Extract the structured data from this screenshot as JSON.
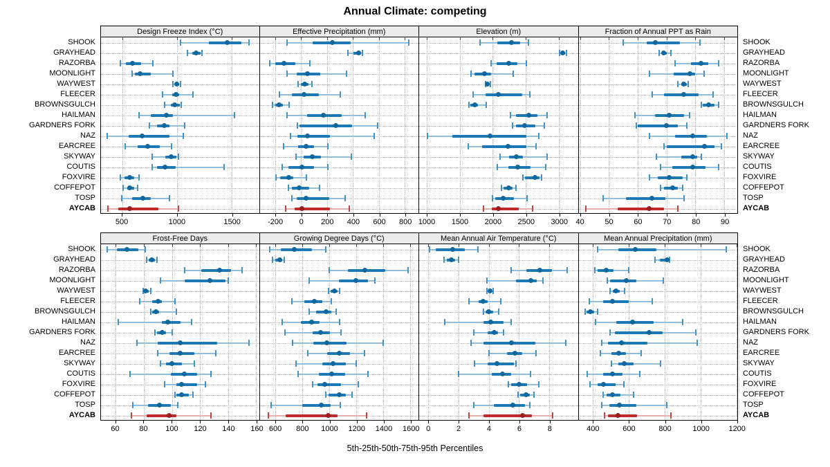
{
  "title": "Annual Climate: competing",
  "caption": "5th-25th-50th-75th-95th Percentiles",
  "colors": {
    "blue_whisker": "#93bfdd",
    "blue_cap": "#4493c6",
    "blue_box": "#1d79b6",
    "blue_dot": "#0f679d",
    "red_whisker": "#e7aeae",
    "red_cap": "#c64444",
    "red_box": "#bf2a2a",
    "red_dot": "#9c1d1d",
    "header_bg": "#ebebeb",
    "grid": "#b9b9b9",
    "panel_border": "#000000"
  },
  "chart_data": {
    "type": "dotplot-percentiles",
    "percentiles": [
      5,
      25,
      50,
      75,
      95
    ],
    "legend_note": "AYCAB highlighted in red, all other sites blue",
    "sites": [
      "SHOOK",
      "GRAYHEAD",
      "RAZORBA",
      "MOONLIGHT",
      "WAYWEST",
      "FLEECER",
      "BROWNSGULCH",
      "HAILMAN",
      "GARDNERS FORK",
      "NAZ",
      "EARCREE",
      "SKYWAY",
      "COUTIS",
      "FOXVIRE",
      "COFFEPOT",
      "TOSP",
      "AYCAB"
    ],
    "highlight_site": "AYCAB",
    "panels": [
      {
        "title": "Design Freeze Index (°C)",
        "xlim": [
          305,
          1750
        ],
        "ticks": [
          500,
          1000,
          1500
        ],
        "values": [
          [
            1030,
            1290,
            1460,
            1590,
            1660
          ],
          [
            1095,
            1140,
            1175,
            1215,
            1230
          ],
          [
            480,
            535,
            595,
            675,
            780
          ],
          [
            590,
            615,
            660,
            760,
            960
          ],
          [
            960,
            985,
            1000,
            1020,
            1035
          ],
          [
            870,
            955,
            990,
            1020,
            1145
          ],
          [
            885,
            945,
            980,
            1025,
            1040
          ],
          [
            650,
            760,
            900,
            960,
            1525
          ],
          [
            750,
            815,
            885,
            930,
            1070
          ],
          [
            360,
            560,
            680,
            930,
            1060
          ],
          [
            525,
            640,
            730,
            845,
            950
          ],
          [
            775,
            890,
            950,
            995,
            1015
          ],
          [
            770,
            815,
            890,
            985,
            1430
          ],
          [
            485,
            520,
            565,
            610,
            655
          ],
          [
            505,
            545,
            570,
            610,
            640
          ],
          [
            495,
            590,
            690,
            760,
            930
          ],
          [
            370,
            460,
            565,
            830,
            1015
          ]
        ]
      },
      {
        "title": "Effective Precipitation (mm)",
        "xlim": [
          -320,
          905
        ],
        "ticks": [
          -200,
          0,
          200,
          400,
          600,
          800
        ],
        "values": [
          [
            -110,
            90,
            240,
            380,
            830
          ],
          [
            360,
            405,
            445,
            460,
            472
          ],
          [
            -245,
            -200,
            -135,
            -45,
            65
          ],
          [
            -110,
            -35,
            50,
            145,
            350
          ],
          [
            -25,
            -5,
            25,
            55,
            85
          ],
          [
            -170,
            -70,
            20,
            135,
            300
          ],
          [
            -220,
            -198,
            -170,
            -143,
            -95
          ],
          [
            -110,
            45,
            170,
            315,
            495
          ],
          [
            -30,
            -15,
            265,
            390,
            590
          ],
          [
            -85,
            -30,
            50,
            220,
            565
          ],
          [
            -135,
            -25,
            35,
            100,
            205
          ],
          [
            -40,
            20,
            85,
            150,
            385
          ],
          [
            -145,
            -100,
            5,
            100,
            205
          ],
          [
            -195,
            -160,
            -95,
            -60,
            40
          ],
          [
            -100,
            -70,
            -15,
            60,
            140
          ],
          [
            -70,
            -35,
            40,
            215,
            340
          ],
          [
            -120,
            -50,
            5,
            220,
            370
          ]
        ]
      },
      {
        "title": "Elevation (m)",
        "xlim": [
          885,
          3290
        ],
        "ticks": [
          1000,
          1500,
          2000,
          2500,
          3000
        ],
        "values": [
          [
            1810,
            2070,
            2280,
            2420,
            2540
          ],
          [
            3010,
            3035,
            3055,
            3095,
            3115
          ],
          [
            1980,
            2055,
            2240,
            2375,
            2510
          ],
          [
            1670,
            1720,
            1875,
            1980,
            2305
          ],
          [
            1895,
            1905,
            1920,
            1945,
            1960
          ],
          [
            1705,
            1895,
            2080,
            2445,
            2560
          ],
          [
            1640,
            1665,
            1730,
            1780,
            1900
          ],
          [
            2270,
            2350,
            2545,
            2680,
            2825
          ],
          [
            2295,
            2355,
            2485,
            2645,
            2780
          ],
          [
            1015,
            1385,
            1960,
            2505,
            2700
          ],
          [
            1630,
            1840,
            2230,
            2505,
            2660
          ],
          [
            2115,
            2250,
            2360,
            2460,
            2825
          ],
          [
            2065,
            2240,
            2380,
            2575,
            2800
          ],
          [
            2460,
            2490,
            2640,
            2710,
            2740
          ],
          [
            2135,
            2160,
            2240,
            2305,
            2350
          ],
          [
            1995,
            2040,
            2160,
            2325,
            2525
          ],
          [
            1860,
            1985,
            2085,
            2395,
            2600
          ]
        ]
      },
      {
        "title": "Fraction of Annual PPT as Rain",
        "xlim": [
          39.5,
          94.5
        ],
        "ticks": [
          40,
          50,
          60,
          70,
          80,
          90
        ],
        "values": [
          [
            55,
            63,
            66,
            74.5,
            81.5
          ],
          [
            67.5,
            68.5,
            69,
            70,
            71.5
          ],
          [
            73,
            78.5,
            82,
            84.5,
            88
          ],
          [
            64,
            72.5,
            78,
            80,
            83
          ],
          [
            74,
            75,
            76,
            77,
            77.5
          ],
          [
            65,
            69,
            76,
            81,
            86
          ],
          [
            82,
            82.5,
            84.5,
            86.5,
            88
          ],
          [
            59,
            66,
            71,
            76,
            78
          ],
          [
            59.5,
            60,
            70,
            74,
            77
          ],
          [
            64,
            73,
            79,
            84,
            91
          ],
          [
            69,
            70,
            83,
            86.5,
            89
          ],
          [
            66.5,
            75,
            79,
            80.5,
            82
          ],
          [
            68,
            72,
            79,
            83.5,
            88
          ],
          [
            64,
            67,
            71,
            75.5,
            77
          ],
          [
            68,
            69,
            72,
            74,
            75.5
          ],
          [
            48,
            56,
            65,
            69.5,
            76
          ],
          [
            42,
            53,
            64,
            69,
            74
          ]
        ]
      },
      {
        "title": "Frost-Free Days",
        "xlim": [
          49.5,
          162
        ],
        "ticks": [
          60,
          80,
          100,
          120,
          140,
          160
        ],
        "values": [
          [
            54,
            61,
            68,
            76,
            81
          ],
          [
            82,
            83.5,
            85.5,
            88,
            89.5
          ],
          [
            109,
            121,
            134,
            142,
            150
          ],
          [
            92,
            109,
            127,
            138,
            140
          ],
          [
            79.5,
            80.5,
            81.5,
            83.5,
            85
          ],
          [
            77,
            86,
            90,
            93,
            102
          ],
          [
            85,
            86,
            88.5,
            91,
            103
          ],
          [
            62,
            93,
            97,
            106,
            114
          ],
          [
            88,
            89.5,
            93,
            96,
            100
          ],
          [
            75,
            90,
            106,
            132,
            155
          ],
          [
            90,
            98,
            106,
            116,
            131
          ],
          [
            92,
            96,
            100,
            107,
            116
          ],
          [
            70,
            99,
            109,
            118,
            128
          ],
          [
            95,
            103,
            107,
            118,
            124
          ],
          [
            102,
            103,
            107,
            112,
            115
          ],
          [
            72,
            83,
            91,
            99,
            104
          ],
          [
            71,
            82,
            98,
            103,
            128
          ]
        ]
      },
      {
        "title": "Growing Degree Days (°C)",
        "xlim": [
          485,
          1660
        ],
        "ticks": [
          600,
          800,
          1000,
          1200,
          1400,
          1600
        ],
        "values": [
          [
            560,
            640,
            740,
            870,
            975
          ],
          [
            580,
            600,
            635,
            650,
            665
          ],
          [
            1000,
            1140,
            1265,
            1415,
            1585
          ],
          [
            850,
            1070,
            1195,
            1285,
            1335
          ],
          [
            995,
            1010,
            1040,
            1060,
            1075
          ],
          [
            725,
            815,
            890,
            950,
            1015
          ],
          [
            850,
            900,
            975,
            1015,
            1050
          ],
          [
            650,
            790,
            870,
            930,
            1075
          ],
          [
            670,
            875,
            935,
            1005,
            1085
          ],
          [
            730,
            880,
            980,
            1130,
            1400
          ],
          [
            840,
            985,
            1075,
            1155,
            1260
          ],
          [
            755,
            950,
            1030,
            1120,
            1200
          ],
          [
            770,
            925,
            1015,
            1115,
            1285
          ],
          [
            875,
            910,
            965,
            1085,
            1215
          ],
          [
            975,
            995,
            1075,
            1120,
            1170
          ],
          [
            570,
            800,
            940,
            1010,
            1080
          ],
          [
            550,
            675,
            990,
            1060,
            1275
          ]
        ]
      },
      {
        "title": "Mean Annual Air Temperature (°C)",
        "xlim": [
          -0.6,
          9.9
        ],
        "ticks": [
          0,
          2,
          4,
          6,
          8
        ],
        "values": [
          [
            0.1,
            0.5,
            1.6,
            2.4,
            3.3
          ],
          [
            1.05,
            1.25,
            1.55,
            1.8,
            2.0
          ],
          [
            5.5,
            6.5,
            7.4,
            8.2,
            9.2
          ],
          [
            3.9,
            5.8,
            6.8,
            7.2,
            7.6
          ],
          [
            3.9,
            4.0,
            4.1,
            4.2,
            4.3
          ],
          [
            2.7,
            3.35,
            3.65,
            3.95,
            4.8
          ],
          [
            3.65,
            3.8,
            4.0,
            4.3,
            4.65
          ],
          [
            1.1,
            3.65,
            4.15,
            5.0,
            5.5
          ],
          [
            3.0,
            3.95,
            4.35,
            4.6,
            5.0
          ],
          [
            2.85,
            3.65,
            5.5,
            7.1,
            9.1
          ],
          [
            4.0,
            5.2,
            5.75,
            6.2,
            7.15
          ],
          [
            3.05,
            3.95,
            4.55,
            5.65,
            5.8
          ],
          [
            2.0,
            4.2,
            4.9,
            5.5,
            6.75
          ],
          [
            5.3,
            5.5,
            6.0,
            6.55,
            7.3
          ],
          [
            5.95,
            6.1,
            6.45,
            6.7,
            7.0
          ],
          [
            3.0,
            4.35,
            5.6,
            6.4,
            6.7
          ],
          [
            2.7,
            3.65,
            6.25,
            6.85,
            8.25
          ]
        ]
      },
      {
        "title": "Mean Annual Precipitation (mm)",
        "xlim": [
          320,
          1205
        ],
        "ticks": [
          400,
          600,
          800,
          1000,
          1200
        ],
        "values": [
          [
            425,
            540,
            635,
            755,
            1145
          ],
          [
            745,
            775,
            812,
            822,
            827
          ],
          [
            410,
            425,
            475,
            515,
            600
          ],
          [
            480,
            497,
            585,
            643,
            793
          ],
          [
            497,
            510,
            528,
            548,
            578
          ],
          [
            380,
            455,
            510,
            600,
            730
          ],
          [
            355,
            365,
            385,
            408,
            425
          ],
          [
            415,
            530,
            620,
            740,
            900
          ],
          [
            495,
            522,
            715,
            790,
            975
          ],
          [
            450,
            485,
            560,
            705,
            980
          ],
          [
            440,
            502,
            545,
            583,
            668
          ],
          [
            505,
            540,
            575,
            625,
            778
          ],
          [
            370,
            458,
            510,
            565,
            663
          ],
          [
            382,
            425,
            458,
            528,
            574
          ],
          [
            458,
            477,
            510,
            553,
            625
          ],
          [
            450,
            493,
            548,
            643,
            812
          ],
          [
            465,
            485,
            540,
            645,
            835
          ]
        ]
      }
    ]
  }
}
